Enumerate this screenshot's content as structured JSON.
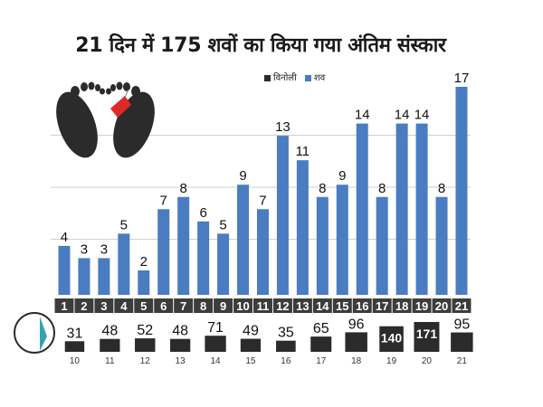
{
  "title": "21 दिन में 175 शवों का किया गया अंतिम संस्कार",
  "colors": {
    "bar": "#4a7cc1",
    "dark": "#2b2b2b",
    "grid": "#cfcfcf"
  },
  "icon": "feet-with-toe-tag-icon",
  "chart_data": [
    {
      "type": "bar",
      "legend": [
        "विनोली",
        "शव"
      ],
      "legend_position": "top-right",
      "categories": [
        "1",
        "2",
        "3",
        "4",
        "5",
        "6",
        "7",
        "8",
        "9",
        "10",
        "11",
        "12",
        "13",
        "14",
        "15",
        "16",
        "17",
        "18",
        "19",
        "20",
        "21"
      ],
      "series": [
        {
          "name": "शव",
          "values": [
            4,
            3,
            3,
            5,
            2,
            7,
            8,
            6,
            5,
            9,
            7,
            13,
            11,
            8,
            9,
            14,
            8,
            14,
            14,
            8,
            17
          ]
        }
      ],
      "ylim": [
        0,
        17
      ],
      "grid": true,
      "xlabel": "",
      "ylabel": ""
    },
    {
      "type": "bar",
      "categories": [
        "10",
        "11",
        "12",
        "13",
        "14",
        "15",
        "16",
        "17",
        "18",
        "19",
        "20",
        "21"
      ],
      "series": [
        {
          "name": "विनोली",
          "values": [
            31,
            48,
            52,
            48,
            71,
            49,
            35,
            65,
            96,
            140,
            171,
            95
          ]
        }
      ],
      "xlabel": "",
      "ylabel": ""
    }
  ]
}
